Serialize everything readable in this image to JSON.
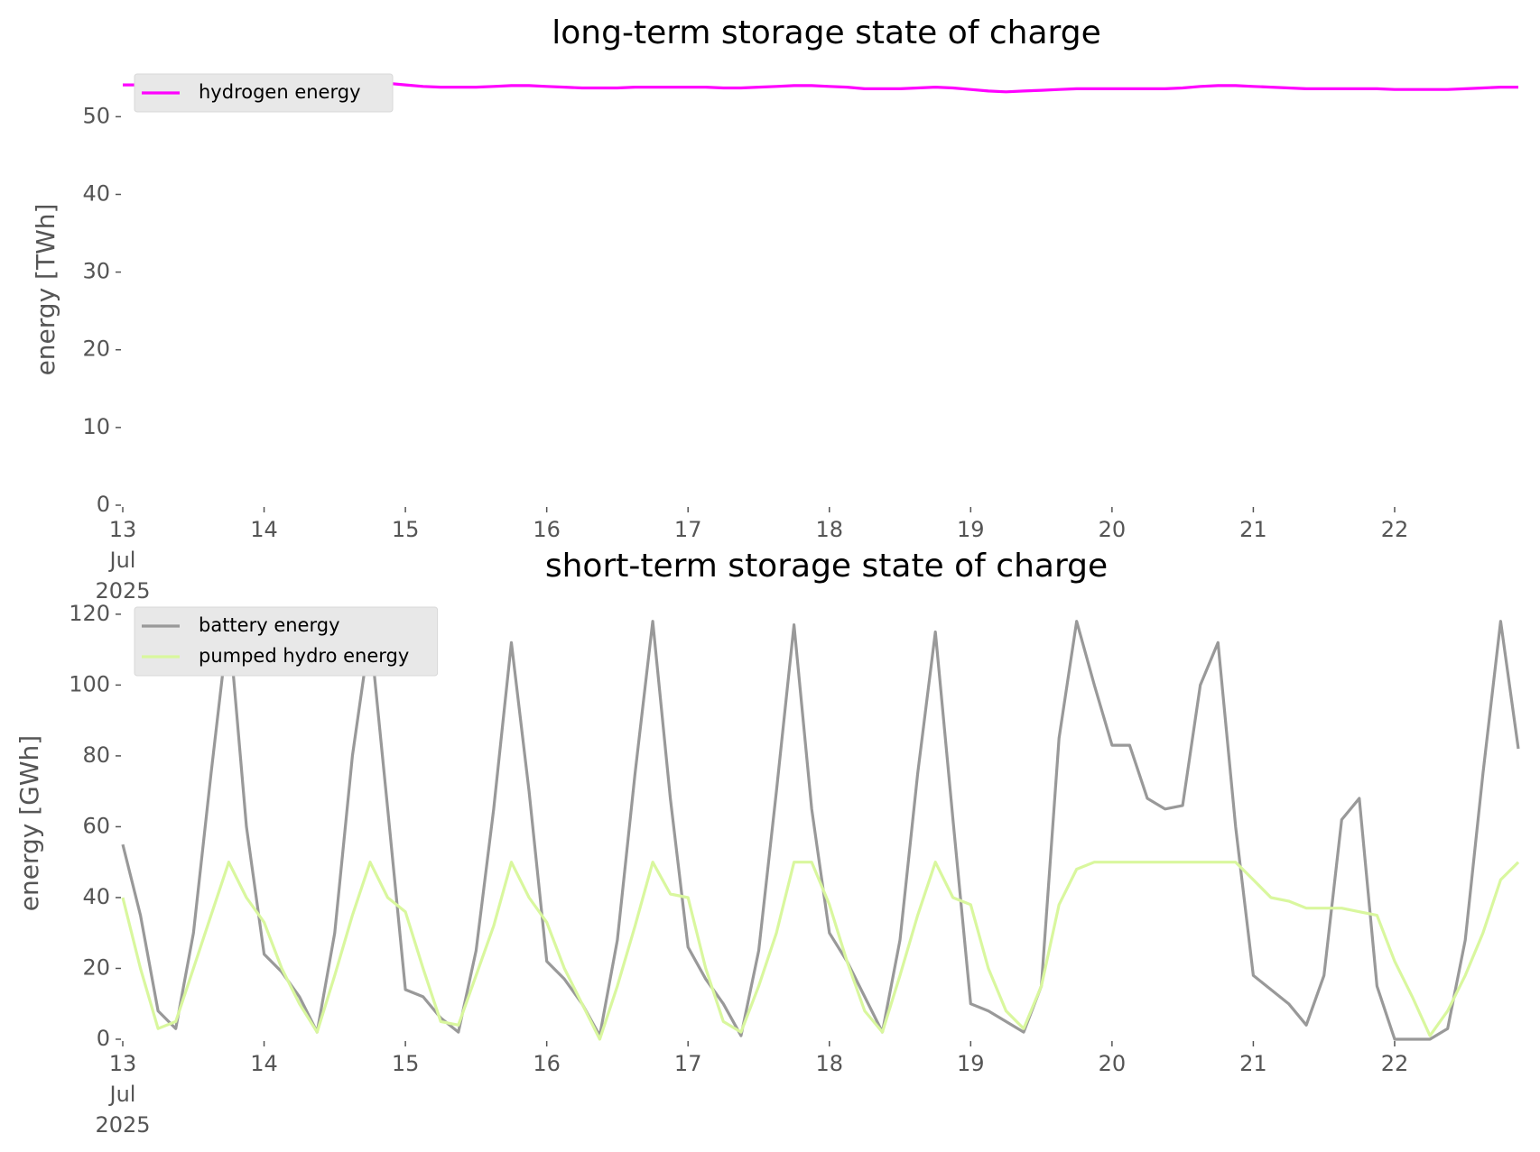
{
  "chart_data": [
    {
      "type": "line",
      "title": "long-term storage state of charge",
      "ylabel": "energy [TWh]",
      "x": [
        "2025-07-13T00:00",
        "2025-07-13T03:00",
        "2025-07-13T06:00",
        "2025-07-13T09:00",
        "2025-07-13T12:00",
        "2025-07-13T15:00",
        "2025-07-13T18:00",
        "2025-07-13T21:00",
        "2025-07-14T00:00",
        "2025-07-14T03:00",
        "2025-07-14T06:00",
        "2025-07-14T09:00",
        "2025-07-14T12:00",
        "2025-07-14T15:00",
        "2025-07-14T18:00",
        "2025-07-14T21:00",
        "2025-07-15T00:00",
        "2025-07-15T03:00",
        "2025-07-15T06:00",
        "2025-07-15T09:00",
        "2025-07-15T12:00",
        "2025-07-15T15:00",
        "2025-07-15T18:00",
        "2025-07-15T21:00",
        "2025-07-16T00:00",
        "2025-07-16T03:00",
        "2025-07-16T06:00",
        "2025-07-16T09:00",
        "2025-07-16T12:00",
        "2025-07-16T15:00",
        "2025-07-16T18:00",
        "2025-07-16T21:00",
        "2025-07-17T00:00",
        "2025-07-17T03:00",
        "2025-07-17T06:00",
        "2025-07-17T09:00",
        "2025-07-17T12:00",
        "2025-07-17T15:00",
        "2025-07-17T18:00",
        "2025-07-17T21:00",
        "2025-07-18T00:00",
        "2025-07-18T03:00",
        "2025-07-18T06:00",
        "2025-07-18T09:00",
        "2025-07-18T12:00",
        "2025-07-18T15:00",
        "2025-07-18T18:00",
        "2025-07-18T21:00",
        "2025-07-19T00:00",
        "2025-07-19T03:00",
        "2025-07-19T06:00",
        "2025-07-19T09:00",
        "2025-07-19T12:00",
        "2025-07-19T15:00",
        "2025-07-19T18:00",
        "2025-07-19T21:00",
        "2025-07-20T00:00",
        "2025-07-20T03:00",
        "2025-07-20T06:00",
        "2025-07-20T09:00",
        "2025-07-20T12:00",
        "2025-07-20T15:00",
        "2025-07-20T18:00",
        "2025-07-20T21:00",
        "2025-07-21T00:00",
        "2025-07-21T03:00",
        "2025-07-21T06:00",
        "2025-07-21T09:00",
        "2025-07-21T12:00",
        "2025-07-21T15:00",
        "2025-07-21T18:00",
        "2025-07-21T21:00",
        "2025-07-22T00:00",
        "2025-07-22T03:00",
        "2025-07-22T06:00",
        "2025-07-22T09:00",
        "2025-07-22T12:00",
        "2025-07-22T15:00",
        "2025-07-22T18:00",
        "2025-07-22T21:00"
      ],
      "xlim": [
        "2025-07-13T00:00",
        "2025-07-22T23:00"
      ],
      "xticks": [
        {
          "value": "2025-07-13T00:00",
          "label": "13\nJul\n2025"
        },
        {
          "value": "2025-07-14T00:00",
          "label": "14"
        },
        {
          "value": "2025-07-15T00:00",
          "label": "15"
        },
        {
          "value": "2025-07-16T00:00",
          "label": "16"
        },
        {
          "value": "2025-07-17T00:00",
          "label": "17"
        },
        {
          "value": "2025-07-18T00:00",
          "label": "18"
        },
        {
          "value": "2025-07-19T00:00",
          "label": "19"
        },
        {
          "value": "2025-07-20T00:00",
          "label": "20"
        },
        {
          "value": "2025-07-21T00:00",
          "label": "21"
        },
        {
          "value": "2025-07-22T00:00",
          "label": "22"
        }
      ],
      "ylim": [
        0,
        55.5
      ],
      "yticks": [
        0,
        10,
        20,
        30,
        40,
        50
      ],
      "legend": "upper left",
      "series": [
        {
          "name": "hydrogen energy",
          "color": "#ff00ff",
          "values": [
            54.1,
            54.1,
            54.1,
            54.2,
            54.3,
            54.4,
            54.5,
            54.5,
            54.5,
            54.4,
            54.3,
            54.2,
            54.2,
            54.3,
            54.4,
            54.3,
            54.1,
            53.9,
            53.8,
            53.8,
            53.8,
            53.9,
            54.0,
            54.0,
            53.9,
            53.8,
            53.7,
            53.7,
            53.7,
            53.8,
            53.8,
            53.8,
            53.8,
            53.8,
            53.7,
            53.7,
            53.8,
            53.9,
            54.0,
            54.0,
            53.9,
            53.8,
            53.6,
            53.6,
            53.6,
            53.7,
            53.8,
            53.7,
            53.5,
            53.3,
            53.2,
            53.3,
            53.4,
            53.5,
            53.6,
            53.6,
            53.6,
            53.6,
            53.6,
            53.6,
            53.7,
            53.9,
            54.0,
            54.0,
            53.9,
            53.8,
            53.7,
            53.6,
            53.6,
            53.6,
            53.6,
            53.6,
            53.5,
            53.5,
            53.5,
            53.5,
            53.6,
            53.7,
            53.8,
            53.8
          ]
        }
      ]
    },
    {
      "type": "line",
      "title": "short-term storage state of charge",
      "ylabel": "energy [GWh]",
      "x": [
        "2025-07-13T00:00",
        "2025-07-13T03:00",
        "2025-07-13T06:00",
        "2025-07-13T09:00",
        "2025-07-13T12:00",
        "2025-07-13T15:00",
        "2025-07-13T18:00",
        "2025-07-13T21:00",
        "2025-07-14T00:00",
        "2025-07-14T03:00",
        "2025-07-14T06:00",
        "2025-07-14T09:00",
        "2025-07-14T12:00",
        "2025-07-14T15:00",
        "2025-07-14T18:00",
        "2025-07-14T21:00",
        "2025-07-15T00:00",
        "2025-07-15T03:00",
        "2025-07-15T06:00",
        "2025-07-15T09:00",
        "2025-07-15T12:00",
        "2025-07-15T15:00",
        "2025-07-15T18:00",
        "2025-07-15T21:00",
        "2025-07-16T00:00",
        "2025-07-16T03:00",
        "2025-07-16T06:00",
        "2025-07-16T09:00",
        "2025-07-16T12:00",
        "2025-07-16T15:00",
        "2025-07-16T18:00",
        "2025-07-16T21:00",
        "2025-07-17T00:00",
        "2025-07-17T03:00",
        "2025-07-17T06:00",
        "2025-07-17T09:00",
        "2025-07-17T12:00",
        "2025-07-17T15:00",
        "2025-07-17T18:00",
        "2025-07-17T21:00",
        "2025-07-18T00:00",
        "2025-07-18T03:00",
        "2025-07-18T06:00",
        "2025-07-18T09:00",
        "2025-07-18T12:00",
        "2025-07-18T15:00",
        "2025-07-18T18:00",
        "2025-07-18T21:00",
        "2025-07-19T00:00",
        "2025-07-19T03:00",
        "2025-07-19T06:00",
        "2025-07-19T09:00",
        "2025-07-19T12:00",
        "2025-07-19T15:00",
        "2025-07-19T18:00",
        "2025-07-19T21:00",
        "2025-07-20T00:00",
        "2025-07-20T03:00",
        "2025-07-20T06:00",
        "2025-07-20T09:00",
        "2025-07-20T12:00",
        "2025-07-20T15:00",
        "2025-07-20T18:00",
        "2025-07-20T21:00",
        "2025-07-21T00:00",
        "2025-07-21T03:00",
        "2025-07-21T06:00",
        "2025-07-21T09:00",
        "2025-07-21T12:00",
        "2025-07-21T15:00",
        "2025-07-21T18:00",
        "2025-07-21T21:00",
        "2025-07-22T00:00",
        "2025-07-22T03:00",
        "2025-07-22T06:00",
        "2025-07-22T09:00",
        "2025-07-22T12:00",
        "2025-07-22T15:00",
        "2025-07-22T18:00",
        "2025-07-22T21:00"
      ],
      "xlim": [
        "2025-07-13T00:00",
        "2025-07-22T23:00"
      ],
      "xticks": [
        {
          "value": "2025-07-13T00:00",
          "label": "13\nJul\n2025"
        },
        {
          "value": "2025-07-14T00:00",
          "label": "14"
        },
        {
          "value": "2025-07-15T00:00",
          "label": "15"
        },
        {
          "value": "2025-07-16T00:00",
          "label": "16"
        },
        {
          "value": "2025-07-17T00:00",
          "label": "17"
        },
        {
          "value": "2025-07-18T00:00",
          "label": "18"
        },
        {
          "value": "2025-07-19T00:00",
          "label": "19"
        },
        {
          "value": "2025-07-20T00:00",
          "label": "20"
        },
        {
          "value": "2025-07-21T00:00",
          "label": "21"
        },
        {
          "value": "2025-07-22T00:00",
          "label": "22"
        }
      ],
      "ylim": [
        0,
        122
      ],
      "yticks": [
        0,
        20,
        40,
        60,
        80,
        100,
        120
      ],
      "legend": "upper left",
      "series": [
        {
          "name": "battery energy",
          "color": "#999999",
          "values": [
            55,
            35,
            8,
            3,
            30,
            75,
            118,
            60,
            24,
            19,
            12,
            2,
            30,
            80,
            115,
            65,
            14,
            12,
            6,
            2,
            25,
            65,
            112,
            70,
            22,
            17,
            10,
            1,
            28,
            75,
            118,
            68,
            26,
            17,
            10,
            1,
            25,
            70,
            117,
            65,
            30,
            22,
            12,
            2,
            28,
            75,
            115,
            62,
            10,
            8,
            5,
            2,
            15,
            85,
            118,
            100,
            83,
            83,
            68,
            65,
            66,
            100,
            112,
            60,
            18,
            14,
            10,
            4,
            18,
            62,
            68,
            15,
            0,
            0,
            0,
            3,
            28,
            75,
            118,
            82
          ]
        },
        {
          "name": "pumped hydro energy",
          "color": "#d9f79e",
          "values": [
            40,
            20,
            3,
            5,
            20,
            35,
            50,
            40,
            33,
            20,
            10,
            2,
            18,
            35,
            50,
            40,
            36,
            20,
            5,
            4,
            18,
            32,
            50,
            40,
            33,
            20,
            10,
            0,
            15,
            32,
            50,
            41,
            40,
            20,
            5,
            2,
            15,
            30,
            50,
            50,
            38,
            22,
            8,
            2,
            18,
            35,
            50,
            40,
            38,
            20,
            8,
            3,
            15,
            38,
            48,
            50,
            50,
            50,
            50,
            50,
            50,
            50,
            50,
            50,
            45,
            40,
            39,
            37,
            37,
            37,
            36,
            35,
            22,
            12,
            1,
            8,
            18,
            30,
            45,
            50
          ]
        }
      ]
    }
  ]
}
